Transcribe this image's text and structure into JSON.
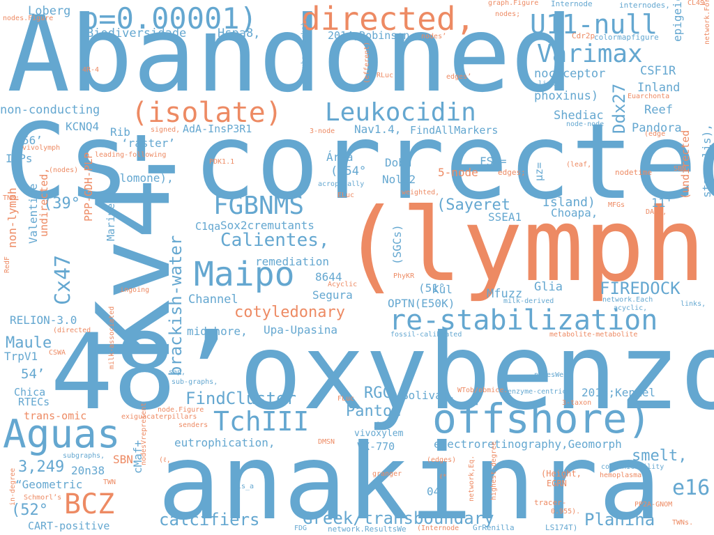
{
  "colors": {
    "blue": "#64a7d0",
    "orange": "#ed8a63"
  },
  "words": [
    {
      "text": "Abandoned",
      "color": "blue"
    },
    {
      "text": "Cs-corrected",
      "color": "blue"
    },
    {
      "text": "48’oxybenzone",
      "color": "blue"
    },
    {
      "text": "anakinra",
      "color": "blue"
    },
    {
      "text": "(lymph",
      "color": "orange"
    },
    {
      "text": "Kv4-",
      "color": "blue"
    },
    {
      "text": "offshore)",
      "color": "blue"
    },
    {
      "text": "directed,",
      "color": "orange"
    },
    {
      "text": "p=0.00001)",
      "color": "blue"
    },
    {
      "text": "U11-null",
      "color": "blue"
    },
    {
      "text": "re-stabilization",
      "color": "blue"
    },
    {
      "text": "(isolate)",
      "color": "orange"
    },
    {
      "text": "Leukocidin",
      "color": "blue"
    },
    {
      "text": "Maipo",
      "color": "blue"
    },
    {
      "text": "Aguas",
      "color": "blue"
    },
    {
      "text": "Varimax",
      "color": "blue"
    },
    {
      "text": "FGBNMS",
      "color": "blue"
    },
    {
      "text": "TchIII",
      "color": "blue"
    },
    {
      "text": "BCZ",
      "color": "orange"
    },
    {
      "text": "Cx47",
      "color": "blue"
    },
    {
      "text": "e16",
      "color": "blue"
    },
    {
      "text": "Calientes,",
      "color": "blue"
    },
    {
      "text": "cotyledonary",
      "color": "orange"
    },
    {
      "text": "Greek/transboundary",
      "color": "blue"
    },
    {
      "text": "FIREDOCK",
      "color": "blue"
    },
    {
      "text": "FindCluster",
      "color": "blue"
    },
    {
      "text": "brackish-water",
      "color": "blue"
    },
    {
      "text": "Ddx27",
      "color": "blue"
    },
    {
      "text": "calcifiers",
      "color": "blue"
    },
    {
      "text": "Planina",
      "color": "blue"
    },
    {
      "text": "Maule",
      "color": "blue"
    },
    {
      "text": "(Sayeret",
      "color": "blue"
    },
    {
      "text": "RGC",
      "color": "blue"
    },
    {
      "text": "Panton",
      "color": "blue"
    },
    {
      "text": "smelt,",
      "color": "blue"
    },
    {
      "text": "3,249",
      "color": "blue"
    },
    {
      "text": "(52°",
      "color": "blue"
    },
    {
      "text": "(39°",
      "color": "blue"
    },
    {
      "text": "Biodiversidade",
      "color": "blue"
    },
    {
      "text": "Loberg",
      "color": "blue"
    },
    {
      "text": "Hspa8,",
      "color": "blue"
    },
    {
      "text": "nociceptor",
      "color": "blue"
    },
    {
      "text": "phoxinus)",
      "color": "blue"
    },
    {
      "text": "Inland",
      "color": "blue"
    },
    {
      "text": "CSF1R",
      "color": "blue"
    },
    {
      "text": "Reef",
      "color": "blue"
    },
    {
      "text": "Pandora",
      "color": "blue"
    },
    {
      "text": "Shediac",
      "color": "blue"
    },
    {
      "text": "non-conducting",
      "color": "blue"
    },
    {
      "text": "KCNQ4",
      "color": "blue"
    },
    {
      "text": "Rib",
      "color": "blue"
    },
    {
      "text": "AdA-InsP3R1",
      "color": "blue"
    },
    {
      "text": "Nav1.4,",
      "color": "blue"
    },
    {
      "text": "FindAllMarkers",
      "color": "blue"
    },
    {
      "text": "‘raster’",
      "color": "blue"
    },
    {
      "text": "56’",
      "color": "blue"
    },
    {
      "text": "IAPs",
      "color": "blue"
    },
    {
      "text": "Alomone),",
      "color": "blue"
    },
    {
      "text": "Área",
      "color": "blue"
    },
    {
      "text": "(N54°",
      "color": "blue"
    },
    {
      "text": "Dobu",
      "color": "blue"
    },
    {
      "text": "Nol12",
      "color": "blue"
    },
    {
      "text": "5-node",
      "color": "orange"
    },
    {
      "text": "FSC=",
      "color": "blue"
    },
    {
      "text": "μz=",
      "color": "blue"
    },
    {
      "text": "Island)",
      "color": "blue"
    },
    {
      "text": "Choapa,",
      "color": "blue"
    },
    {
      "text": "SSEA1",
      "color": "blue"
    },
    {
      "text": "C1qa",
      "color": "blue"
    },
    {
      "text": "Sox2cremutants",
      "color": "blue"
    },
    {
      "text": "(SGCs)",
      "color": "blue"
    },
    {
      "text": "remediation",
      "color": "blue"
    },
    {
      "text": "8644",
      "color": "blue"
    },
    {
      "text": "Segura",
      "color": "blue"
    },
    {
      "text": "(51°",
      "color": "blue"
    },
    {
      "text": "Kul",
      "color": "blue"
    },
    {
      "text": "OPTN(E50K)",
      "color": "blue"
    },
    {
      "text": "Mfuzz",
      "color": "blue"
    },
    {
      "text": "Glia",
      "color": "blue"
    },
    {
      "text": "Channel",
      "color": "blue"
    },
    {
      "text": "midshore,",
      "color": "blue"
    },
    {
      "text": "Upa-Upasina",
      "color": "blue"
    },
    {
      "text": "RELION-3.0",
      "color": "blue"
    },
    {
      "text": "TrpV1",
      "color": "blue"
    },
    {
      "text": "54’",
      "color": "blue"
    },
    {
      "text": "Chica",
      "color": "blue"
    },
    {
      "text": "RTECs",
      "color": "blue"
    },
    {
      "text": "trans-omic",
      "color": "orange"
    },
    {
      "text": "Bolivar,",
      "color": "blue"
    },
    {
      "text": "2015;Kenkel",
      "color": "blue"
    },
    {
      "text": "electroretinography,Geomorph",
      "color": "blue"
    },
    {
      "text": "eutrophication,",
      "color": "blue"
    },
    {
      "text": "VX-770",
      "color": "blue"
    },
    {
      "text": "vivoxylem",
      "color": "blue"
    },
    {
      "text": "44’",
      "color": "blue"
    },
    {
      "text": "04’",
      "color": "blue"
    },
    {
      "text": "SBN",
      "color": "orange"
    },
    {
      "text": "20n38",
      "color": "blue"
    },
    {
      "text": "“Geometric",
      "color": "blue"
    },
    {
      "text": "CART-positive",
      "color": "blue"
    },
    {
      "text": "cMaf+",
      "color": "blue"
    },
    {
      "text": "Marines",
      "color": "blue"
    },
    {
      "text": "PPP-GDH-PLP",
      "color": "orange"
    },
    {
      "text": "non-lymph",
      "color": "orange"
    },
    {
      "text": "Valentine",
      "color": "blue"
    },
    {
      "text": "undirected,",
      "color": "orange"
    },
    {
      "text": "epigeic,",
      "color": "blue"
    },
    {
      "text": "stagnalis),",
      "color": "blue"
    },
    {
      "text": "(undirected",
      "color": "orange"
    },
    {
      "text": "11'",
      "color": "blue"
    },
    {
      "text": "2014;Robinson",
      "color": "blue"
    },
    {
      "text": "colormapfigure",
      "color": "blue"
    },
    {
      "text": "Cdr2p",
      "color": "orange"
    },
    {
      "text": "Lymph",
      "color": "orange"
    },
    {
      "text": "CL49",
      "color": "orange"
    },
    {
      "text": "internodes,",
      "color": "blue"
    },
    {
      "text": "Internode",
      "color": "blue"
    },
    {
      "text": "graph.Figure",
      "color": "orange"
    },
    {
      "text": "nodes;",
      "color": "orange"
    },
    {
      "text": "nodes.Figure",
      "color": "orange"
    },
    {
      "text": "Euarchonta",
      "color": "orange"
    },
    {
      "text": "network.For",
      "color": "orange"
    },
    {
      "text": "links",
      "color": "blue"
    },
    {
      "text": "node-node",
      "color": "blue"
    },
    {
      "text": "(edge",
      "color": "orange"
    },
    {
      "text": "edges;",
      "color": "orange"
    },
    {
      "text": "nodetime",
      "color": "orange"
    },
    {
      "text": "(leaf,",
      "color": "orange"
    },
    {
      "text": "SBN.",
      "color": "orange"
    },
    {
      "text": "MFGs",
      "color": "orange"
    },
    {
      "text": "DAGs,",
      "color": "orange"
    },
    {
      "text": "links,",
      "color": "blue"
    },
    {
      "text": "acyclic,",
      "color": "blue"
    },
    {
      "text": "network.Each",
      "color": "blue"
    },
    {
      "text": "metabolite-metabolite",
      "color": "orange"
    },
    {
      "text": "milk-derived",
      "color": "blue"
    },
    {
      "text": "fossil-calibrated",
      "color": "blue"
    },
    {
      "text": "PhyKR",
      "color": "orange"
    },
    {
      "text": "Acyclic",
      "color": "orange"
    },
    {
      "text": "ingoing",
      "color": "orange"
    },
    {
      "text": "RedF",
      "color": "orange"
    },
    {
      "text": "(directed",
      "color": "orange"
    },
    {
      "text": "CSWA",
      "color": "orange"
    },
    {
      "text": "milk-associated",
      "color": "orange"
    },
    {
      "text": "sap,",
      "color": "blue"
    },
    {
      "text": "sub-graphs,",
      "color": "blue"
    },
    {
      "text": "nodesWe",
      "color": "blue"
    },
    {
      "text": "enzyme-centric",
      "color": "blue"
    },
    {
      "text": "WTob/obmice.",
      "color": "orange"
    },
    {
      "text": "3-taxon",
      "color": "orange"
    },
    {
      "text": "node.Figure",
      "color": "orange"
    },
    {
      "text": "exiguacaterpillars",
      "color": "orange"
    },
    {
      "text": "senders",
      "color": "orange"
    },
    {
      "text": "FLuc",
      "color": "orange"
    },
    {
      "text": "DMSN",
      "color": "orange"
    },
    {
      "text": "subgraphs,",
      "color": "blue"
    },
    {
      "text": "(edges)",
      "color": "orange"
    },
    {
      "text": "(ℓ,",
      "color": "orange"
    },
    {
      "text": "nodesVrepresent",
      "color": "orange"
    },
    {
      "text": "TWN",
      "color": "orange"
    },
    {
      "text": "granger",
      "color": "orange"
    },
    {
      "text": "ℓ*",
      "color": "orange"
    },
    {
      "text": "network,Eq.",
      "color": "orange"
    },
    {
      "text": "highest-degree",
      "color": "orange"
    },
    {
      "text": "(Height,",
      "color": "orange"
    },
    {
      "text": "EGRN",
      "color": "orange"
    },
    {
      "text": "communicability",
      "color": "blue"
    },
    {
      "text": "hemoplasma",
      "color": "orange"
    },
    {
      "text": "tracer-",
      "color": "orange"
    },
    {
      "text": "0.955).",
      "color": "orange"
    },
    {
      "text": "PP2A-GNOM",
      "color": "orange"
    },
    {
      "text": "TWNs.",
      "color": "orange"
    },
    {
      "text": "LS174T)",
      "color": "blue"
    },
    {
      "text": "GrRenilla",
      "color": "blue"
    },
    {
      "text": "(Internode",
      "color": "orange"
    },
    {
      "text": "network.ResultsWe",
      "color": "blue"
    },
    {
      "text": "FDG",
      "color": "blue"
    },
    {
      "text": "is_a",
      "color": "blue"
    },
    {
      "text": "Schmorl’s",
      "color": "orange"
    },
    {
      "text": "in-degree",
      "color": "orange"
    },
    {
      "text": "4R-4",
      "color": "orange"
    },
    {
      "text": "RLuc",
      "color": "orange"
    },
    {
      "text": "edges’",
      "color": "orange"
    },
    {
      "text": "nodes’",
      "color": "orange"
    },
    {
      "text": "(efferent)",
      "color": "orange"
    },
    {
      "text": "subnetworks).",
      "color": "blue"
    },
    {
      "text": "3-node",
      "color": "orange"
    },
    {
      "text": "signed,",
      "color": "orange"
    },
    {
      "text": "vivolymph",
      "color": "orange"
    },
    {
      "text": "leading-following",
      "color": "orange"
    },
    {
      "text": "PDK1.1",
      "color": "orange"
    },
    {
      "text": "(nodes)",
      "color": "orange"
    },
    {
      "text": "acropetally",
      "color": "blue"
    },
    {
      "text": "weighted,",
      "color": "orange"
    },
    {
      "text": "ELuc",
      "color": "orange"
    },
    {
      "text": "TNM:",
      "color": "orange"
    },
    {
      "text": "unweighted,",
      "color": "orange"
    }
  ]
}
